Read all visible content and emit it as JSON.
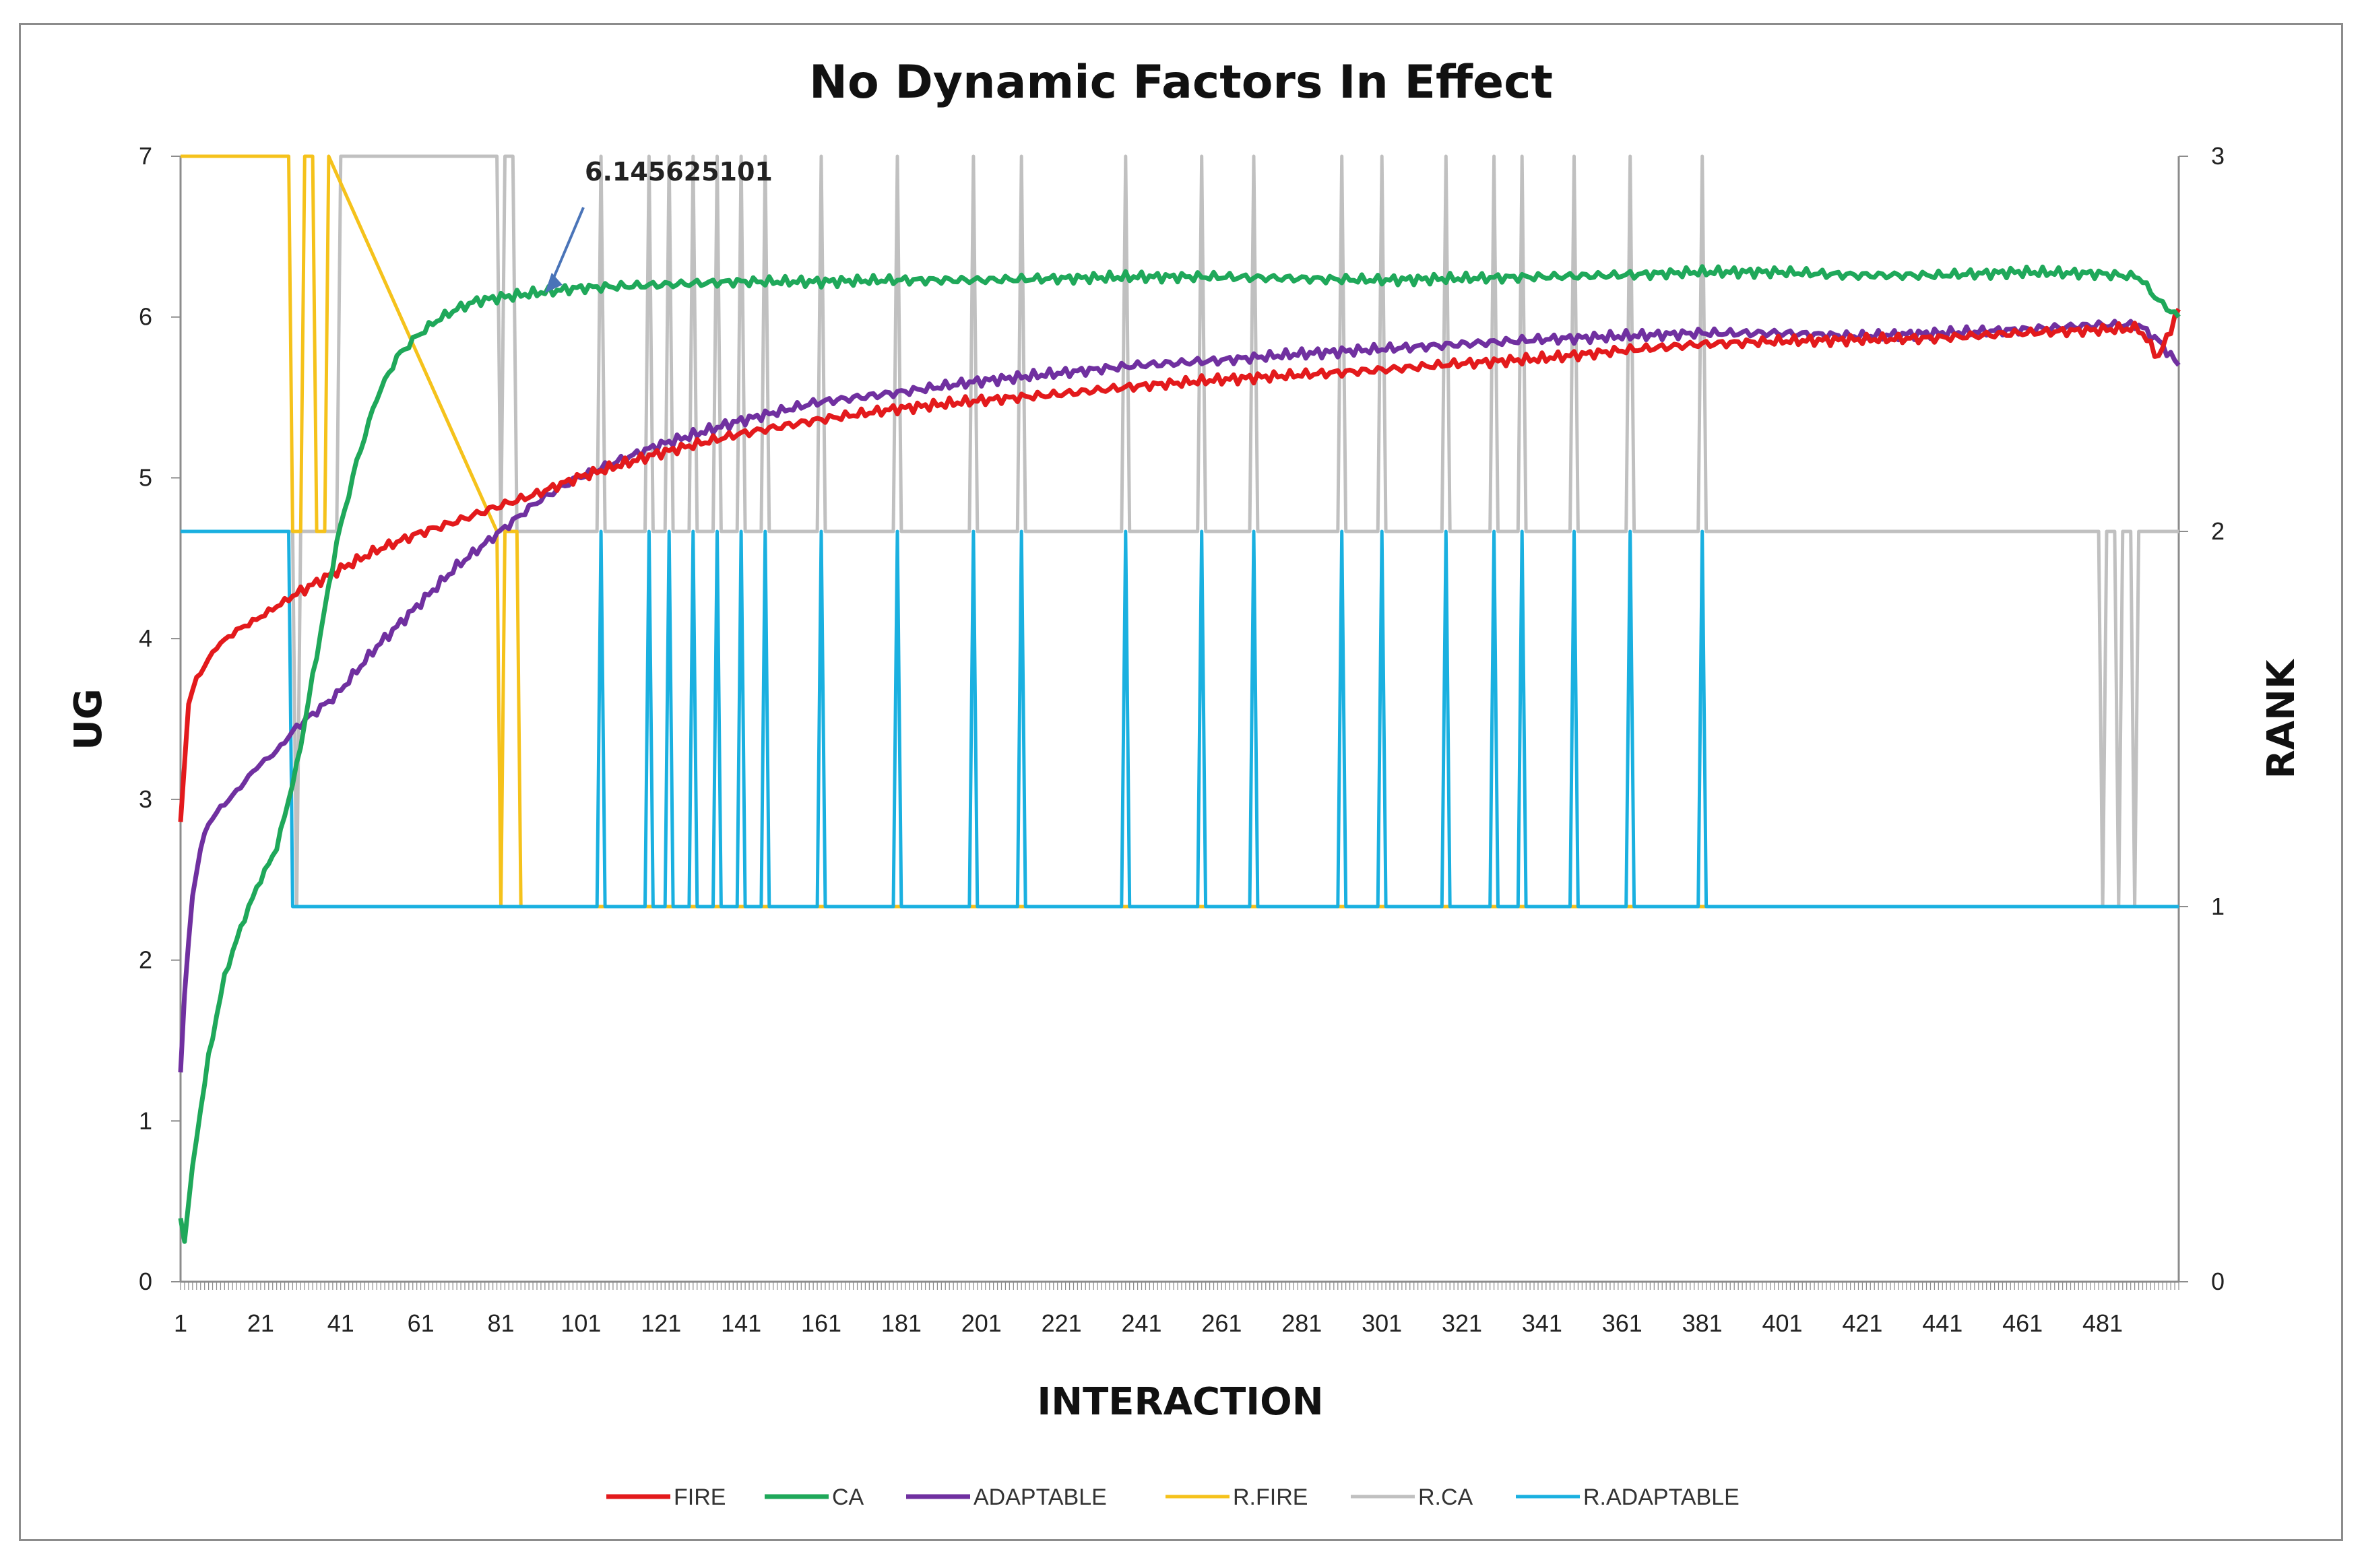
{
  "chart_data": {
    "type": "line",
    "title": "No Dynamic Factors In Effect",
    "xlabel": "INTERACTION",
    "ylabel": "UG",
    "y2label": "RANK",
    "xlim": [
      1,
      500
    ],
    "ylim": [
      0,
      7
    ],
    "y2lim": [
      0,
      3
    ],
    "x_ticks": [
      1,
      21,
      41,
      61,
      81,
      101,
      121,
      141,
      161,
      181,
      201,
      221,
      241,
      261,
      281,
      301,
      321,
      341,
      361,
      381,
      401,
      421,
      441,
      461,
      481
    ],
    "y_ticks": [
      0,
      1,
      2,
      3,
      4,
      5,
      6,
      7
    ],
    "y2_ticks": [
      0,
      1,
      2,
      3
    ],
    "legend_position": "bottom",
    "grid": false,
    "annotation": {
      "text": "6.145625101",
      "x": 92,
      "y": 6.15
    },
    "series": [
      {
        "name": "FIRE",
        "axis": "left",
        "color": "#e31a1c",
        "x": [
          1,
          3,
          5,
          10,
          15,
          20,
          25,
          30,
          40,
          50,
          60,
          70,
          80,
          90,
          100,
          120,
          140,
          160,
          180,
          200,
          220,
          240,
          260,
          280,
          300,
          320,
          340,
          360,
          380,
          400,
          420,
          440,
          460,
          480,
          490,
          495,
          500
        ],
        "y": [
          2.85,
          3.6,
          3.75,
          3.95,
          4.05,
          4.12,
          4.2,
          4.28,
          4.42,
          4.55,
          4.65,
          4.73,
          4.82,
          4.9,
          5.0,
          5.15,
          5.27,
          5.36,
          5.43,
          5.48,
          5.52,
          5.57,
          5.61,
          5.64,
          5.67,
          5.71,
          5.74,
          5.79,
          5.83,
          5.85,
          5.86,
          5.87,
          5.9,
          5.92,
          5.93,
          5.75,
          6.05
        ]
      },
      {
        "name": "CA",
        "axis": "left",
        "color": "#1fa85a",
        "x": [
          1,
          2,
          3,
          5,
          8,
          12,
          16,
          20,
          25,
          30,
          35,
          40,
          45,
          50,
          55,
          60,
          65,
          70,
          75,
          80,
          90,
          100,
          120,
          140,
          160,
          180,
          200,
          220,
          240,
          260,
          280,
          300,
          320,
          340,
          360,
          380,
          400,
          420,
          440,
          460,
          480,
          490,
          495,
          500
        ],
        "y": [
          0.4,
          0.25,
          0.5,
          0.9,
          1.4,
          1.9,
          2.2,
          2.45,
          2.7,
          3.2,
          3.9,
          4.6,
          5.1,
          5.5,
          5.75,
          5.88,
          5.98,
          6.05,
          6.1,
          6.12,
          6.15,
          6.18,
          6.2,
          6.22,
          6.22,
          6.23,
          6.23,
          6.24,
          6.25,
          6.25,
          6.24,
          6.23,
          6.24,
          6.25,
          6.26,
          6.28,
          6.28,
          6.26,
          6.26,
          6.28,
          6.27,
          6.25,
          6.1,
          6.0
        ]
      },
      {
        "name": "ADAPTABLE",
        "axis": "left",
        "color": "#7030a0",
        "x": [
          1,
          2,
          4,
          6,
          8,
          10,
          15,
          20,
          25,
          30,
          40,
          50,
          60,
          70,
          80,
          90,
          100,
          110,
          120,
          140,
          160,
          180,
          200,
          220,
          240,
          260,
          280,
          300,
          320,
          340,
          360,
          380,
          400,
          420,
          440,
          460,
          480,
          490,
          495,
          500
        ],
        "y": [
          1.3,
          1.8,
          2.4,
          2.7,
          2.85,
          2.92,
          3.05,
          3.2,
          3.3,
          3.45,
          3.65,
          3.95,
          4.2,
          4.45,
          4.65,
          4.85,
          5.0,
          5.1,
          5.2,
          5.35,
          5.47,
          5.53,
          5.6,
          5.65,
          5.7,
          5.73,
          5.77,
          5.8,
          5.83,
          5.86,
          5.88,
          5.9,
          5.9,
          5.88,
          5.9,
          5.92,
          5.95,
          5.95,
          5.85,
          5.7
        ]
      },
      {
        "name": "R.FIRE",
        "axis": "right",
        "color": "#f5c21b",
        "x": [
          1,
          28,
          29,
          31,
          32,
          34,
          35,
          37,
          38,
          80,
          81,
          82,
          83,
          85,
          86,
          87,
          500
        ],
        "y": [
          3,
          3,
          2,
          2,
          3,
          3,
          2,
          2,
          3,
          2,
          1,
          2,
          2,
          2,
          1,
          1,
          1
        ]
      },
      {
        "name": "R.CA",
        "axis": "right",
        "color": "#c0c0c0",
        "x": [
          1,
          29,
          30,
          31,
          40,
          41,
          80,
          81,
          82,
          84,
          85,
          86,
          105,
          106,
          107,
          117,
          118,
          119,
          122,
          123,
          124,
          128,
          129,
          130,
          134,
          135,
          136,
          140,
          141,
          142,
          146,
          147,
          148,
          160,
          161,
          162,
          179,
          180,
          181,
          198,
          199,
          200,
          210,
          211,
          212,
          236,
          237,
          238,
          255,
          256,
          257,
          268,
          269,
          270,
          290,
          291,
          292,
          300,
          301,
          302,
          316,
          317,
          318,
          328,
          329,
          330,
          335,
          336,
          337,
          348,
          349,
          350,
          362,
          363,
          364,
          380,
          381,
          382,
          480,
          481,
          482,
          484,
          485,
          486,
          488,
          489,
          490,
          500
        ],
        "y": [
          2,
          2,
          1,
          2,
          2,
          3,
          3,
          2,
          3,
          3,
          2,
          2,
          2,
          3,
          2,
          2,
          3,
          2,
          2,
          3,
          2,
          2,
          3,
          2,
          2,
          3,
          2,
          2,
          3,
          2,
          2,
          3,
          2,
          2,
          3,
          2,
          2,
          3,
          2,
          2,
          3,
          2,
          2,
          3,
          2,
          2,
          3,
          2,
          2,
          3,
          2,
          2,
          3,
          2,
          2,
          3,
          2,
          2,
          3,
          2,
          2,
          3,
          2,
          2,
          3,
          2,
          2,
          3,
          2,
          2,
          3,
          2,
          2,
          3,
          2,
          2,
          3,
          2,
          2,
          1,
          2,
          2,
          1,
          2,
          2,
          1,
          2,
          2
        ]
      },
      {
        "name": "R.ADAPTABLE",
        "axis": "right",
        "color": "#1ab0e0",
        "x": [
          1,
          28,
          29,
          31,
          105,
          106,
          107,
          117,
          118,
          119,
          122,
          123,
          124,
          128,
          129,
          130,
          134,
          135,
          136,
          140,
          141,
          142,
          146,
          147,
          148,
          160,
          161,
          162,
          179,
          180,
          181,
          198,
          199,
          200,
          210,
          211,
          212,
          236,
          237,
          238,
          255,
          256,
          257,
          268,
          269,
          270,
          290,
          291,
          292,
          300,
          301,
          302,
          316,
          317,
          318,
          328,
          329,
          330,
          335,
          336,
          337,
          348,
          349,
          350,
          362,
          363,
          364,
          380,
          381,
          382,
          500
        ],
        "y": [
          2,
          2,
          1,
          1,
          1,
          2,
          1,
          1,
          2,
          1,
          1,
          2,
          1,
          1,
          2,
          1,
          1,
          2,
          1,
          1,
          2,
          1,
          1,
          2,
          1,
          1,
          2,
          1,
          1,
          2,
          1,
          1,
          2,
          1,
          1,
          2,
          1,
          1,
          2,
          1,
          1,
          2,
          1,
          1,
          2,
          1,
          1,
          2,
          1,
          1,
          2,
          1,
          1,
          2,
          1,
          1,
          2,
          1,
          1,
          2,
          1,
          1,
          2,
          1,
          1,
          2,
          1,
          1,
          2,
          1,
          1
        ]
      }
    ]
  }
}
